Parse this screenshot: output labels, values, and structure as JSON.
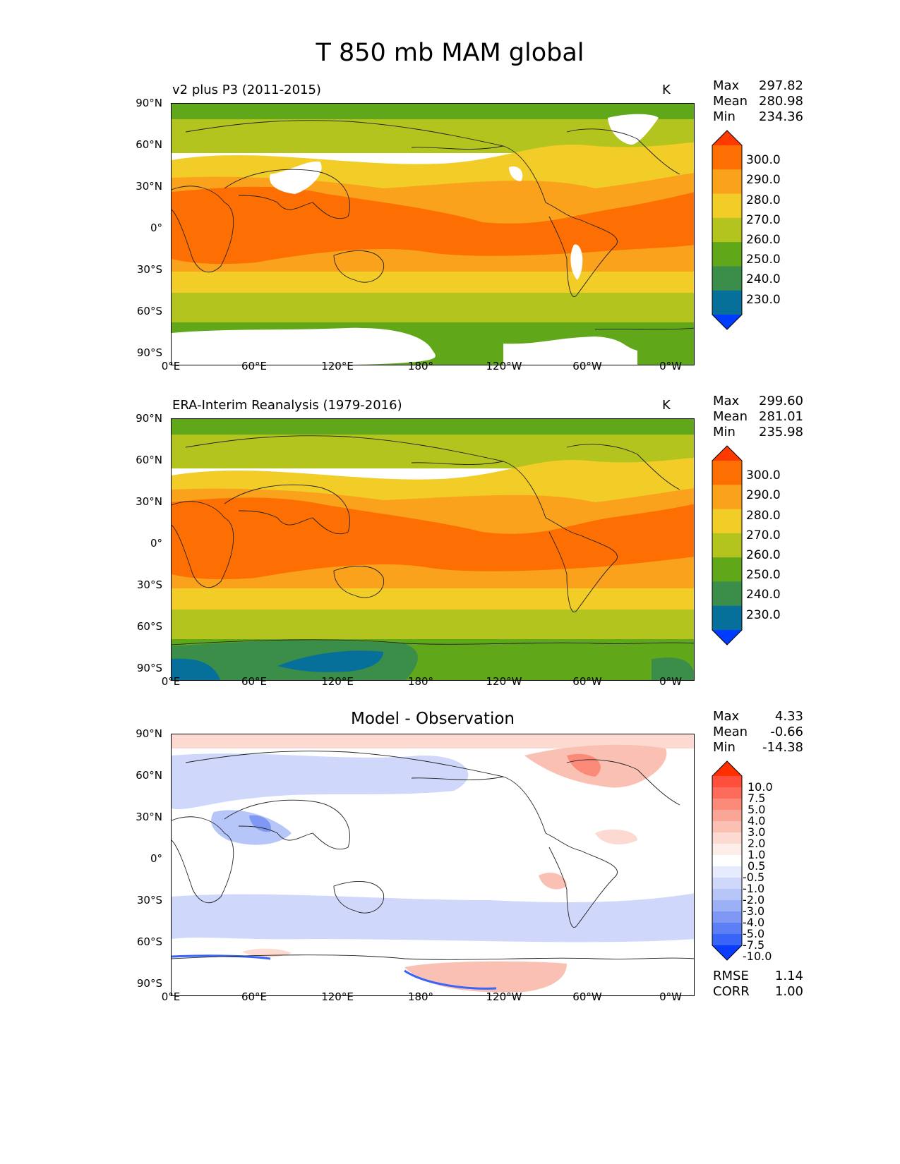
{
  "figure": {
    "title": "T 850 mb MAM global"
  },
  "panels": [
    {
      "title": "v2 plus P3 (2011-2015)",
      "units": "K",
      "stats": {
        "max_label": "Max",
        "max": "297.82",
        "mean_label": "Mean",
        "mean": "280.98",
        "min_label": "Min",
        "min": "234.36"
      }
    },
    {
      "title": "ERA-Interim Reanalysis (1979-2016)",
      "units": "K",
      "stats": {
        "max_label": "Max",
        "max": "299.60",
        "mean_label": "Mean",
        "mean": "281.01",
        "min_label": "Min",
        "min": "235.98"
      }
    },
    {
      "title": "Model - Observation",
      "units": "",
      "stats": {
        "max_label": "Max",
        "max": "4.33",
        "mean_label": "Mean",
        "mean": "-0.66",
        "min_label": "Min",
        "min": "-14.38"
      },
      "metrics": {
        "rmse_label": "RMSE",
        "rmse": "1.14",
        "corr_label": "CORR",
        "corr": "1.00"
      }
    }
  ],
  "axes": {
    "lat_ticks": [
      "90°N",
      "60°N",
      "30°N",
      "0°",
      "30°S",
      "60°S",
      "90°S"
    ],
    "lon_ticks": [
      "0°E",
      "60°E",
      "120°E",
      "180°",
      "120°W",
      "60°W",
      "0°W"
    ]
  },
  "colorbars": {
    "temp": {
      "labels": [
        "300.0",
        "290.0",
        "280.0",
        "270.0",
        "260.0",
        "250.0",
        "240.0",
        "230.0"
      ],
      "colors": [
        "#fe3a00",
        "#fd6f03",
        "#faa21b",
        "#f2cd27",
        "#b3c41e",
        "#60a81a",
        "#3b8d4a",
        "#06709b",
        "#003cff"
      ]
    },
    "diff": {
      "labels": [
        "10.0",
        "7.5",
        "5.0",
        "4.0",
        "3.0",
        "2.0",
        "1.0",
        "0.5",
        "-0.5",
        "-1.0",
        "-2.0",
        "-3.0",
        "-4.0",
        "-5.0",
        "-7.5",
        "-10.0"
      ],
      "colors": [
        "#ff2f00",
        "#fe4f3c",
        "#fd6c5b",
        "#fb8a78",
        "#f9a696",
        "#fac0b3",
        "#fcd9d1",
        "#fdeeea",
        "#ffffff",
        "#e6ecfd",
        "#cfd8fb",
        "#b7c6f8",
        "#9cb0f6",
        "#7e98f4",
        "#5c7ff6",
        "#3864f8",
        "#0a3bff"
      ]
    }
  }
}
